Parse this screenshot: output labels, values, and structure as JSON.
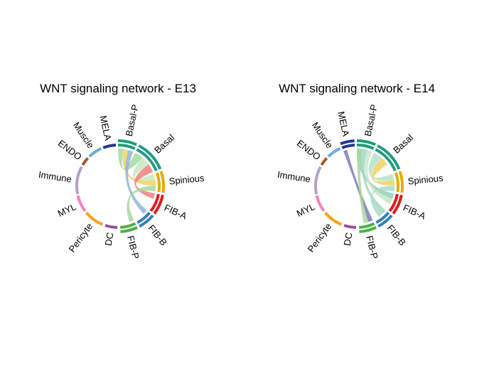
{
  "chart_data": [
    {
      "type": "chord",
      "title": "WNT signaling network - E13",
      "sectors": [
        {
          "name": "Basal-P",
          "color": "#1b9e77"
        },
        {
          "name": "Basal",
          "color": "#239b85"
        },
        {
          "name": "Spinious",
          "color": "#e6ab02"
        },
        {
          "name": "FIB-A",
          "color": "#e41a1c"
        },
        {
          "name": "FIB-B",
          "color": "#377eb8"
        },
        {
          "name": "FIB-P",
          "color": "#4daf4a"
        },
        {
          "name": "DC",
          "color": "#984ea3"
        },
        {
          "name": "Pericyte",
          "color": "#ff9f1c"
        },
        {
          "name": "MYL",
          "color": "#f781bf"
        },
        {
          "name": "Immune",
          "color": "#b3a2c7"
        },
        {
          "name": "ENDO",
          "color": "#a65628"
        },
        {
          "name": "Muscle",
          "color": "#6baed6"
        },
        {
          "name": "MELA",
          "color": "#253494"
        }
      ],
      "links": [
        {
          "source": "Basal-P",
          "target": "Basal",
          "color": "#a6dba0"
        },
        {
          "source": "Basal",
          "target": "Spinious",
          "color": "#c7e9c0"
        },
        {
          "source": "Spinious",
          "target": "Basal-P",
          "color": "#f0d264"
        },
        {
          "source": "FIB-A",
          "target": "Basal",
          "color": "#f08080"
        },
        {
          "source": "FIB-B",
          "target": "Basal-P",
          "color": "#8fb4d6"
        },
        {
          "source": "FIB-P",
          "target": "Spinious",
          "color": "#a9d8a0"
        }
      ]
    },
    {
      "type": "chord",
      "title": "WNT signaling network - E14",
      "sectors": [
        {
          "name": "Basal-P",
          "color": "#1b9e77"
        },
        {
          "name": "Basal",
          "color": "#239b85"
        },
        {
          "name": "Spinious",
          "color": "#e6ab02"
        },
        {
          "name": "FIB-A",
          "color": "#e41a1c"
        },
        {
          "name": "FIB-B",
          "color": "#377eb8"
        },
        {
          "name": "FIB-P",
          "color": "#4daf4a"
        },
        {
          "name": "DC",
          "color": "#984ea3"
        },
        {
          "name": "Pericyte",
          "color": "#ff9f1c"
        },
        {
          "name": "MYL",
          "color": "#f781bf"
        },
        {
          "name": "Immune",
          "color": "#b3a2c7"
        },
        {
          "name": "ENDO",
          "color": "#a65628"
        },
        {
          "name": "Muscle",
          "color": "#6baed6"
        },
        {
          "name": "MELA",
          "color": "#253494"
        }
      ],
      "links": [
        {
          "source": "MELA",
          "target": "FIB-P",
          "color": "#7b7fb5"
        },
        {
          "source": "Basal-P",
          "target": "FIB-A",
          "color": "#8fd1b8"
        },
        {
          "source": "Basal-P",
          "target": "FIB-B",
          "color": "#9fd9c0"
        },
        {
          "source": "Basal",
          "target": "Spinious",
          "color": "#b5e3cf"
        },
        {
          "source": "Spinious",
          "target": "Basal",
          "color": "#f0d264"
        },
        {
          "source": "FIB-A",
          "target": "Basal-P",
          "color": "#c8e6c9"
        },
        {
          "source": "FIB-B",
          "target": "Spinious",
          "color": "#a9dcc8"
        },
        {
          "source": "FIB-P",
          "target": "Basal-P",
          "color": "#a9d8a0"
        }
      ]
    }
  ]
}
